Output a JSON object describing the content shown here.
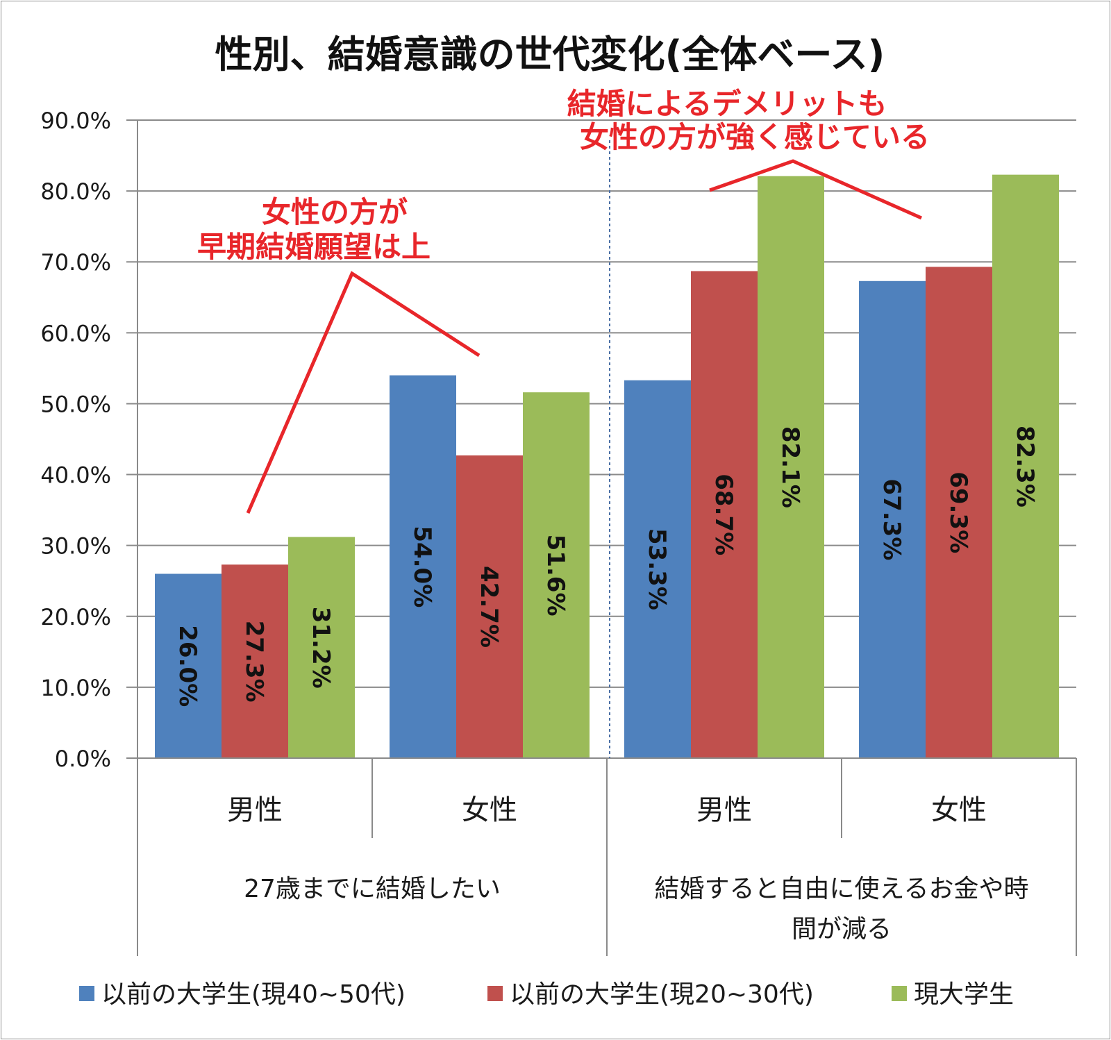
{
  "chart_data": {
    "type": "bar",
    "title": "性別、結婚意識の世代変化(全体ベース)",
    "ylim": [
      0,
      90
    ],
    "yticks": [
      "0.0%",
      "10.0%",
      "20.0%",
      "30.0%",
      "40.0%",
      "50.0%",
      "60.0%",
      "70.0%",
      "80.0%",
      "90.0%"
    ],
    "grid": true,
    "legend_position": "bottom",
    "groups": [
      "27歳までに結婚したい",
      "結婚すると自由に使えるお金や時間が減る"
    ],
    "group_label_lines": [
      [
        "27歳までに結婚したい"
      ],
      [
        "結婚すると自由に使えるお金や時",
        "間が減る"
      ]
    ],
    "categories": [
      "男性",
      "女性",
      "男性",
      "女性"
    ],
    "series": [
      {
        "name": "以前の大学生(現40~50代)",
        "color": "#4f81bd",
        "values": [
          26.0,
          54.0,
          53.3,
          67.3
        ],
        "labels": [
          "26.0%",
          "54.0%",
          "53.3%",
          "67.3%"
        ]
      },
      {
        "name": "以前の大学生(現20~30代)",
        "color": "#c0504d",
        "values": [
          27.3,
          42.7,
          68.7,
          69.3
        ],
        "labels": [
          "27.3%",
          "42.7%",
          "68.7%",
          "69.3%"
        ]
      },
      {
        "name": "現大学生",
        "color": "#9bbb59",
        "values": [
          31.2,
          51.6,
          82.1,
          82.3
        ],
        "labels": [
          "31.2%",
          "51.6%",
          "82.1%",
          "82.3%"
        ]
      }
    ],
    "annotations": [
      {
        "lines": [
          "女性の方が",
          "早期結婚願望は上"
        ],
        "color": "#e8262a"
      },
      {
        "lines": [
          "結婚によるデメリットも",
          "女性の方が強く感じている"
        ],
        "color": "#e8262a"
      }
    ]
  }
}
